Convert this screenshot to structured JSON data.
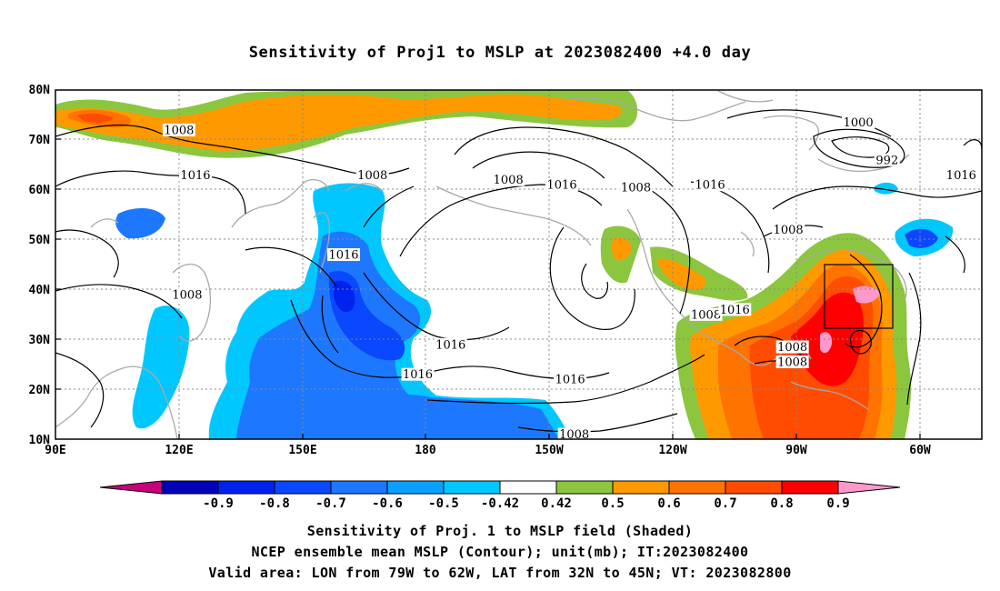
{
  "title": "Sensitivity of Proj1 to MSLP at 2023082400 +4.0 day",
  "map": {
    "lon_labels": [
      "90E",
      "120E",
      "150E",
      "180",
      "150W",
      "120W",
      "90W",
      "60W"
    ],
    "lat_labels": [
      "10N",
      "20N",
      "30N",
      "40N",
      "50N",
      "60N",
      "70N",
      "80N"
    ],
    "extent": {
      "lon_min": 90,
      "lon_max": 315,
      "lat_min": 10,
      "lat_max": 80
    },
    "valid_area": {
      "lon_min": 281,
      "lon_max": 298,
      "lat_min": 32,
      "lat_max": 45
    },
    "contour_labels": [
      {
        "text": "1008",
        "lon": 120,
        "lat": 72
      },
      {
        "text": "1016",
        "lon": 124,
        "lat": 63
      },
      {
        "text": "1008",
        "lon": 167,
        "lat": 63
      },
      {
        "text": "1008",
        "lon": 200,
        "lat": 62
      },
      {
        "text": "1016",
        "lon": 213,
        "lat": 61
      },
      {
        "text": "1008",
        "lon": 231,
        "lat": 60.5
      },
      {
        "text": "1016",
        "lon": 249,
        "lat": 61
      },
      {
        "text": "1000",
        "lon": 285,
        "lat": 73.5
      },
      {
        "text": "992",
        "lon": 292,
        "lat": 66
      },
      {
        "text": "1016",
        "lon": 310,
        "lat": 63
      },
      {
        "text": "1008",
        "lon": 268,
        "lat": 52
      },
      {
        "text": "1016",
        "lon": 160,
        "lat": 47
      },
      {
        "text": "1008",
        "lon": 122,
        "lat": 39
      },
      {
        "text": "1016",
        "lon": 186,
        "lat": 29
      },
      {
        "text": "1016",
        "lon": 178,
        "lat": 23
      },
      {
        "text": "1016",
        "lon": 215,
        "lat": 22
      },
      {
        "text": "1008",
        "lon": 248,
        "lat": 35
      },
      {
        "text": "1016",
        "lon": 255,
        "lat": 36
      },
      {
        "text": "1008",
        "lon": 269,
        "lat": 28.5
      },
      {
        "text": "1008",
        "lon": 269,
        "lat": 25.5
      },
      {
        "text": "1008",
        "lon": 216,
        "lat": 11
      }
    ]
  },
  "colorbar": {
    "colors": [
      "#c8007a",
      "#0000b8",
      "#0022ee",
      "#0a48ff",
      "#1e78ff",
      "#0aa0ff",
      "#00c8ff",
      "#ffffff",
      "#8cc63f",
      "#ff9900",
      "#ff7300",
      "#ff4c00",
      "#ff0000",
      "#ff99cc"
    ],
    "labels": [
      "-0.9",
      "-0.8",
      "-0.7",
      "-0.6",
      "-0.5",
      "-0.42",
      "0.42",
      "0.5",
      "0.6",
      "0.7",
      "0.8",
      "0.9"
    ]
  },
  "captions": {
    "line1": "Sensitivity of Proj. 1 to MSLP field (Shaded)",
    "line2": "NCEP ensemble mean MSLP (Contour); unit(mb); IT:2023082400",
    "line3": "Valid area: LON from 79W to 62W, LAT from 32N to 45N; VT: 2023082800"
  }
}
